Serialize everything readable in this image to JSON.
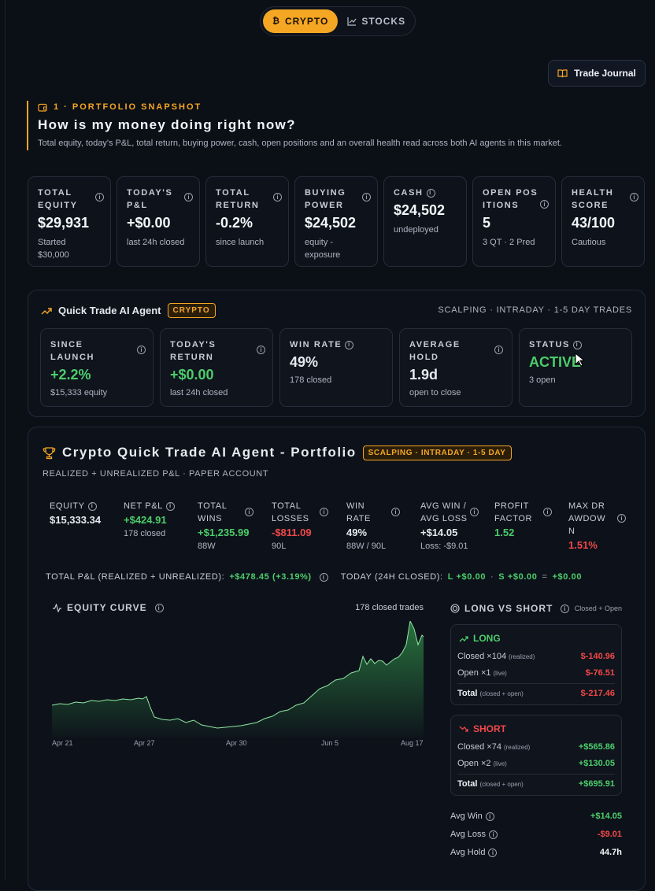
{
  "nav": {
    "tabs": [
      {
        "label": "CRYPTO"
      },
      {
        "label": "STOCKS"
      }
    ],
    "journal": "Trade Journal"
  },
  "snapshot": {
    "kicker": "1 · PORTFOLIO SNAPSHOT",
    "title": "How is my money doing right now?",
    "desc": "Total equity, today's P&L, total return, buying power, cash, open positions and an overall health read across both AI agents in this market."
  },
  "cards": [
    {
      "label": "TOTAL EQUITY",
      "value": "$29,931",
      "sub": "Started $30,000"
    },
    {
      "label": "TODAY'S P&L",
      "value": "+$0.00",
      "sub": "last 24h closed"
    },
    {
      "label": "TOTAL RETURN",
      "value": "-0.2%",
      "sub": "since launch"
    },
    {
      "label": "BUYING POWER",
      "value": "$24,502",
      "sub": "equity - exposure"
    },
    {
      "label": "CASH",
      "value": "$24,502",
      "sub": "undeployed"
    },
    {
      "label": "OPEN POSITIONS",
      "value": "5",
      "sub": "3 QT · 2 Pred"
    },
    {
      "label": "HEALTH SCORE",
      "value": "43/100",
      "sub": "Cautious"
    }
  ],
  "agent": {
    "name": "Quick Trade AI Agent",
    "badge": "CRYPTO",
    "mode": "SCALPING · INTRADAY · 1-5 DAY TRADES",
    "cards": [
      {
        "label": "SINCE LAUNCH",
        "value": "+2.2%",
        "sub": "$15,333 equity"
      },
      {
        "label": "TODAY'S RETURN",
        "value": "+$0.00",
        "sub": "last 24h closed"
      },
      {
        "label": "WIN RATE",
        "value": "49%",
        "sub": "178 closed"
      },
      {
        "label": "AVERAGE HOLD",
        "value": "1.9d",
        "sub": "open to close"
      },
      {
        "label": "STATUS",
        "value": "ACTIVE",
        "sub": "3 open"
      }
    ]
  },
  "portfolio": {
    "title": "Crypto Quick Trade AI Agent - Portfolio",
    "badge": "SCALPING · INTRADAY · 1-5 DAY",
    "subtitle": "REALIZED + UNREALIZED P&L · PAPER ACCOUNT",
    "metrics": [
      {
        "label": "EQUITY",
        "value": "$15,333.34",
        "sub": ""
      },
      {
        "label": "NET P&L",
        "value": "+$424.91",
        "sub": "178 closed"
      },
      {
        "label": "TOTAL WINS",
        "value": "+$1,235.99",
        "sub": "88W"
      },
      {
        "label": "TOTAL LOSSES",
        "value": "-$811.09",
        "sub": "90L"
      },
      {
        "label": "WIN RATE",
        "value": "49%",
        "sub": "88W / 90L"
      },
      {
        "label": "AVG WIN / AVG LOSS",
        "value": "+$14.05",
        "sub": "Loss: -$9.01"
      },
      {
        "label": "PROFIT FACTOR",
        "value": "1.52",
        "sub": ""
      },
      {
        "label": "MAX DRAWDOWN",
        "value": "1.51%",
        "sub": ""
      }
    ],
    "totals": {
      "label": "TOTAL P&L (REALIZED + UNREALIZED):",
      "value": "+$478.45 (+3.19%)",
      "today_label": "TODAY (24H CLOSED):",
      "today_l": "L +$0.00",
      "dot": "·",
      "today_s": "S +$0.00",
      "eq": "=",
      "today_total": "+$0.00"
    },
    "equity_curve": {
      "title": "EQUITY CURVE",
      "trades": "178 closed trades",
      "ticks": [
        "Apr 21",
        "Apr 27",
        "Apr 30",
        "Jun 5",
        "Aug 17"
      ]
    },
    "long_short": {
      "title": "LONG VS SHORT",
      "scope": "Closed + Open",
      "long": {
        "label": "LONG",
        "closed": "Closed ×104",
        "closed_tag": "(realized)",
        "closed_val": "$-140.96",
        "open": "Open ×1",
        "open_tag": "(live)",
        "open_val": "$-76.51",
        "total": "Total",
        "total_tag": "(closed + open)",
        "total_val": "$-217.46"
      },
      "short": {
        "label": "SHORT",
        "closed": "Closed ×74",
        "closed_tag": "(realized)",
        "closed_val": "+$565.86",
        "open": "Open ×2",
        "open_tag": "(live)",
        "open_val": "+$130.05",
        "total": "Total",
        "total_tag": "(closed + open)",
        "total_val": "+$695.91"
      },
      "stats": [
        {
          "label": "Avg Win",
          "value": "+$14.05"
        },
        {
          "label": "Avg Loss",
          "value": "-$9.01"
        },
        {
          "label": "Avg Hold",
          "value": "44.7h"
        }
      ]
    }
  },
  "colors": {
    "accent": "#f5a623",
    "green": "#4ccd6a",
    "red": "#f04848",
    "bg": "#0b0f16"
  }
}
